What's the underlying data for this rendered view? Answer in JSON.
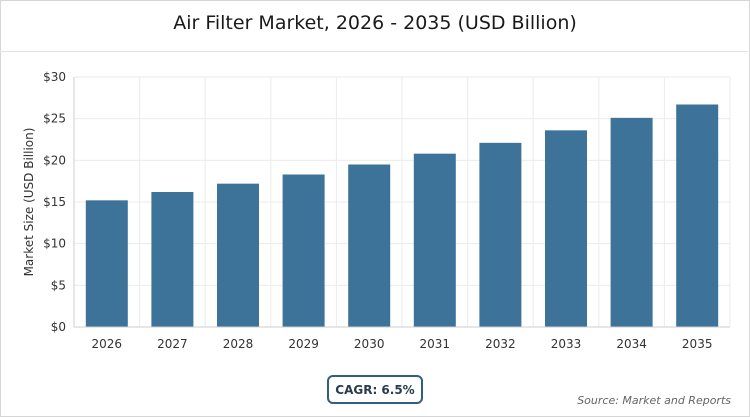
{
  "title": "Air Filter Market, 2026 - 2035 (USD Billion)",
  "cagr_label": "CAGR: 6.5%",
  "source": "Source: Market and Reports",
  "colors": {
    "bar": "#3d7299",
    "grid": "#ebebeb",
    "axis": "#cccccc",
    "badge_border": "#2f5f84"
  },
  "chart_data": {
    "type": "bar",
    "title": "Air Filter Market, 2026 - 2035 (USD Billion)",
    "xlabel": "",
    "ylabel": "Market Size (USD Billion)",
    "categories": [
      "2026",
      "2027",
      "2028",
      "2029",
      "2030",
      "2031",
      "2032",
      "2033",
      "2034",
      "2035"
    ],
    "values": [
      15.2,
      16.2,
      17.2,
      18.3,
      19.5,
      20.8,
      22.1,
      23.6,
      25.1,
      26.7
    ],
    "ylim": [
      0,
      30
    ],
    "yticks": [
      0,
      5,
      10,
      15,
      20,
      25,
      30
    ],
    "ytick_labels": [
      "$0",
      "$5",
      "$10",
      "$15",
      "$20",
      "$25",
      "$30"
    ],
    "grid": true,
    "legend": "none"
  }
}
